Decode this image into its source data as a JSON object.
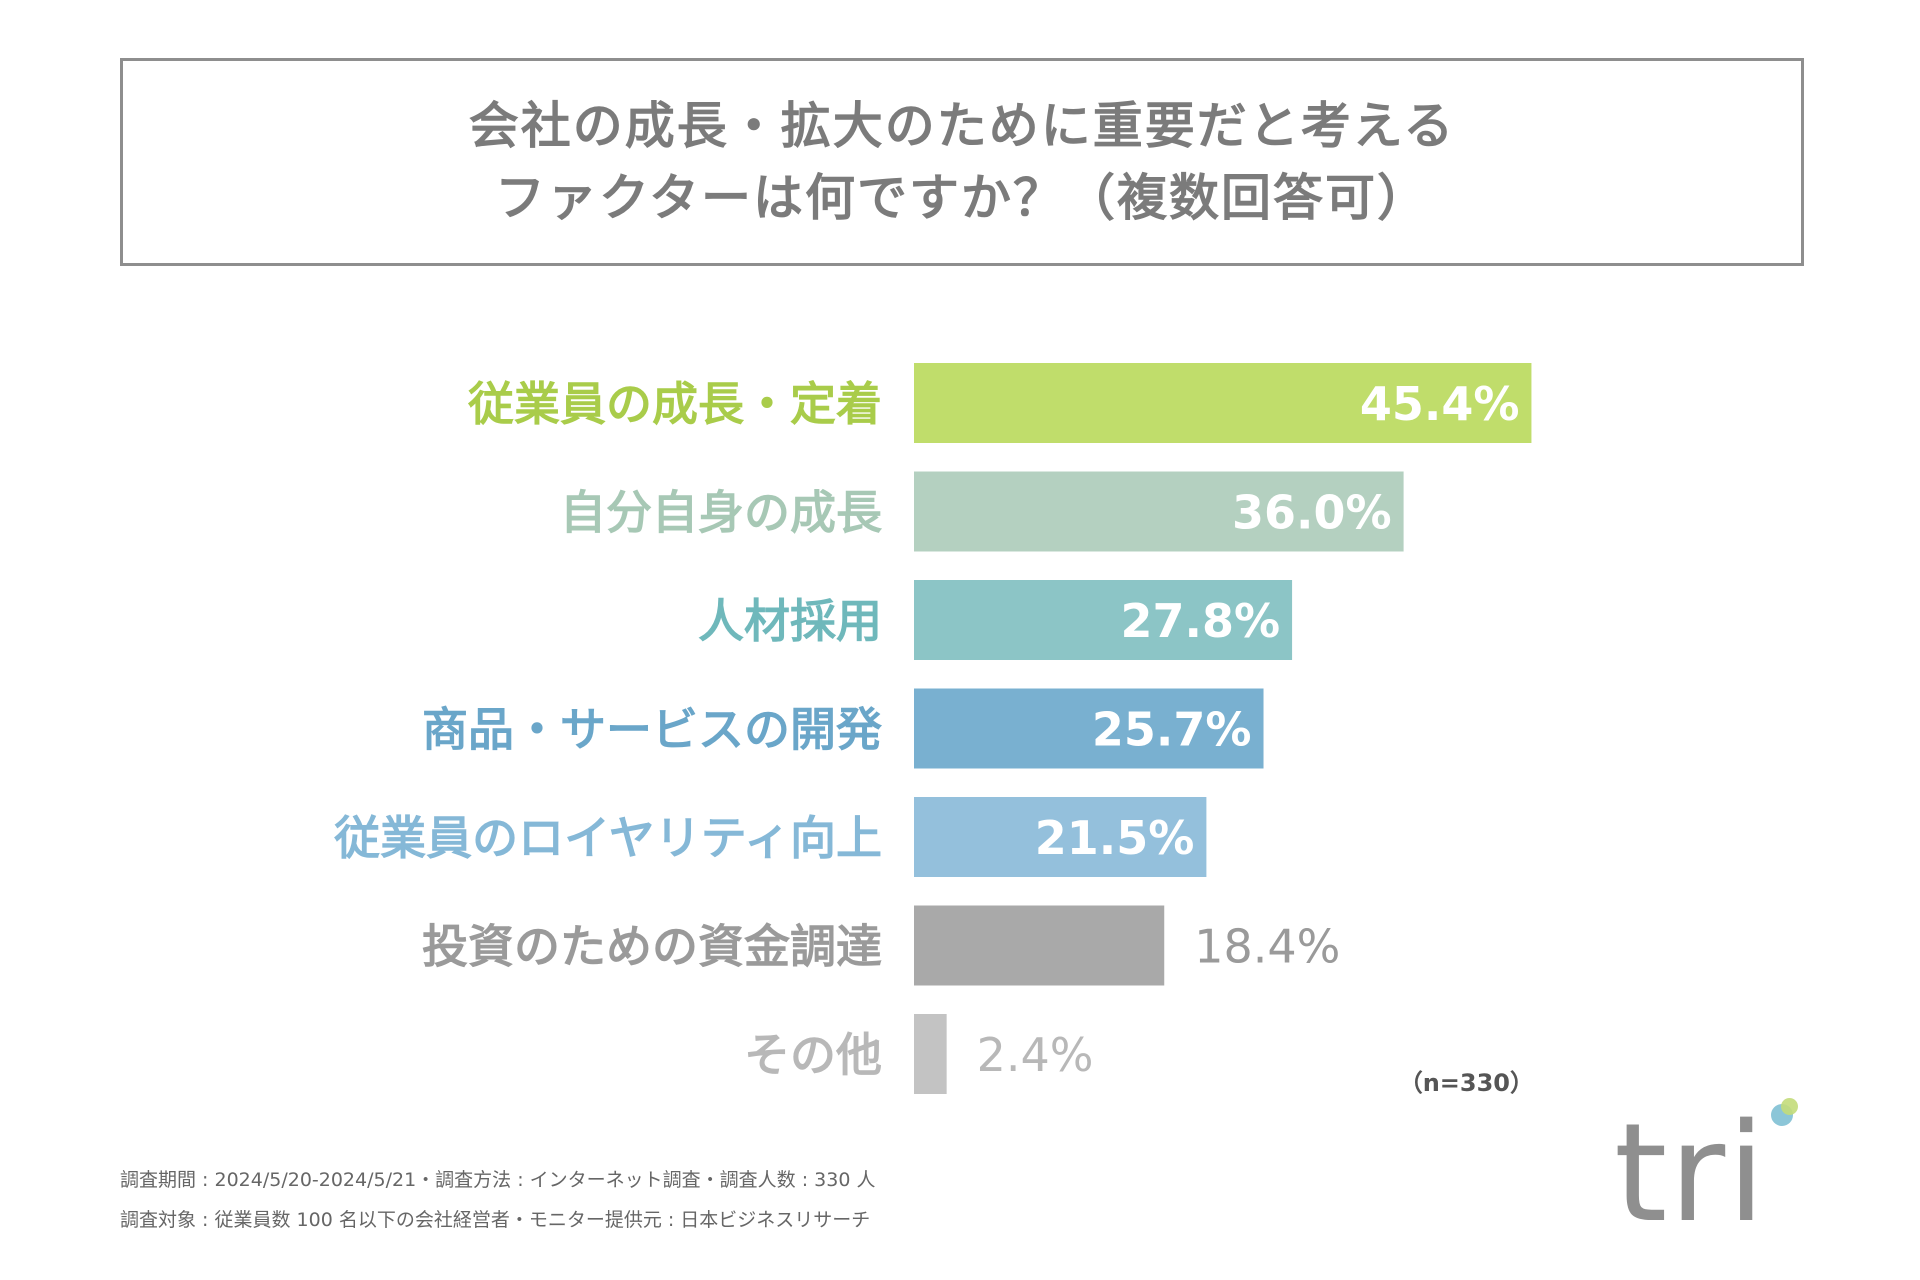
{
  "title": {
    "line1": "会社の成長・拡大のために重要だと考える",
    "line2": "ファクターは何ですか？（複数回答可）"
  },
  "chart_data": {
    "type": "bar",
    "orientation": "horizontal",
    "categories": [
      "従業員の成長・定着",
      "自分自身の成長",
      "人材採用",
      "商品・サービスの開発",
      "従業員のロイヤリティ向上",
      "投資のための資金調達",
      "その他"
    ],
    "values": [
      45.4,
      36.0,
      27.8,
      25.7,
      21.5,
      18.4,
      2.4
    ],
    "value_labels": [
      "45.4%",
      "36.0%",
      "27.8%",
      "25.7%",
      "21.5%",
      "18.4%",
      "2.4%"
    ],
    "bar_colors": [
      "#c0dd6b",
      "#b4d0c0",
      "#8cc5c6",
      "#79b0d0",
      "#94c0dc",
      "#a9a9a9",
      "#c3c3c3"
    ],
    "label_colors": [
      "#a9cc4a",
      "#a7c8b5",
      "#6fb8bb",
      "#6aa6c9",
      "#85b8d7",
      "#9a9a9a",
      "#b8b8b8"
    ],
    "sample_size": "（n=330）",
    "xlabel": "",
    "ylabel": ""
  },
  "notes": {
    "line1": "調査期間 : 2024/5/20-2024/5/21・調査方法 : インターネット調査・調査人数 : 330 人",
    "line2": "調査対象 : 従業員数 100 名以下の会社経営者・モニター提供元 : 日本ビジネスリサーチ"
  },
  "logo": {
    "text": "tri"
  }
}
